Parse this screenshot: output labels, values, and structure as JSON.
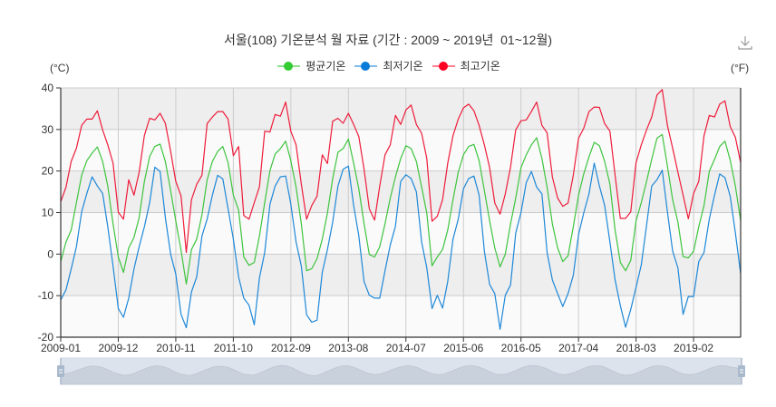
{
  "title": "서울(108) 기온분석 월 자료 (기간 : 2009 ~ 2019년  01~12월)",
  "toolbox": {
    "download_icon": "download-icon"
  },
  "axes": {
    "left_unit": "(°C)",
    "right_unit": "(°F)"
  },
  "legend": [
    {
      "label": "평균기온",
      "color": "#33cc33",
      "line_color": "#8fdf8f"
    },
    {
      "label": "최저기온",
      "color": "#0a7bd9",
      "line_color": "#80bbe9"
    },
    {
      "label": "최고기온",
      "color": "#ff0022",
      "line_color": "#ff7f8f"
    }
  ],
  "data_zoom": {
    "start_percent": 0,
    "end_percent": 100,
    "background": "#dde3ec",
    "shadow": "#c9d1dc",
    "handle": "#a9b9cc"
  },
  "chart_data": {
    "type": "line",
    "title": "서울(108) 기온분석 월 자료 (기간 : 2009 ~ 2019년  01~12월)",
    "xlabel": "",
    "ylabel": "(°C)",
    "ylabel_right": "(°F)",
    "ylim": [
      -20,
      40
    ],
    "y_ticks": [
      40,
      30,
      20,
      10,
      0,
      -10,
      -20
    ],
    "x_tick_labels": [
      "2009-01",
      "2009-12",
      "2010-11",
      "2011-10",
      "2012-09",
      "2013-08",
      "2014-07",
      "2015-06",
      "2016-05",
      "2017-04",
      "2018-03",
      "2019-02"
    ],
    "grid": true,
    "legend_position": "top",
    "x": [
      "2009-01",
      "2009-02",
      "2009-03",
      "2009-04",
      "2009-05",
      "2009-06",
      "2009-07",
      "2009-08",
      "2009-09",
      "2009-10",
      "2009-11",
      "2009-12",
      "2010-01",
      "2010-02",
      "2010-03",
      "2010-04",
      "2010-05",
      "2010-06",
      "2010-07",
      "2010-08",
      "2010-09",
      "2010-10",
      "2010-11",
      "2010-12",
      "2011-01",
      "2011-02",
      "2011-03",
      "2011-04",
      "2011-05",
      "2011-06",
      "2011-07",
      "2011-08",
      "2011-09",
      "2011-10",
      "2011-11",
      "2011-12",
      "2012-01",
      "2012-02",
      "2012-03",
      "2012-04",
      "2012-05",
      "2012-06",
      "2012-07",
      "2012-08",
      "2012-09",
      "2012-10",
      "2012-11",
      "2012-12",
      "2013-01",
      "2013-02",
      "2013-03",
      "2013-04",
      "2013-05",
      "2013-06",
      "2013-07",
      "2013-08",
      "2013-09",
      "2013-10",
      "2013-11",
      "2013-12",
      "2014-01",
      "2014-02",
      "2014-03",
      "2014-04",
      "2014-05",
      "2014-06",
      "2014-07",
      "2014-08",
      "2014-09",
      "2014-10",
      "2014-11",
      "2014-12",
      "2015-01",
      "2015-02",
      "2015-03",
      "2015-04",
      "2015-05",
      "2015-06",
      "2015-07",
      "2015-08",
      "2015-09",
      "2015-10",
      "2015-11",
      "2015-12",
      "2016-01",
      "2016-02",
      "2016-03",
      "2016-04",
      "2016-05",
      "2016-06",
      "2016-07",
      "2016-08",
      "2016-09",
      "2016-10",
      "2016-11",
      "2016-12",
      "2017-01",
      "2017-02",
      "2017-03",
      "2017-04",
      "2017-05",
      "2017-06",
      "2017-07",
      "2017-08",
      "2017-09",
      "2017-10",
      "2017-11",
      "2017-12",
      "2018-01",
      "2018-02",
      "2018-03",
      "2018-04",
      "2018-05",
      "2018-06",
      "2018-07",
      "2018-08",
      "2018-09",
      "2018-10",
      "2018-11",
      "2018-12",
      "2019-01",
      "2019-02",
      "2019-03",
      "2019-04",
      "2019-05",
      "2019-06",
      "2019-07",
      "2019-08",
      "2019-09",
      "2019-10",
      "2019-11"
    ],
    "series": [
      {
        "name": "평균기온",
        "key": "avg",
        "color": "#3ec43e",
        "values": [
          -1.8,
          2.9,
          5.8,
          12.4,
          19.0,
          22.5,
          24.3,
          25.8,
          22.3,
          16.4,
          7.3,
          -0.7,
          -4.4,
          1.5,
          4.0,
          8.8,
          17.5,
          23.5,
          25.9,
          26.5,
          22.3,
          15.3,
          8.0,
          0.9,
          -7.2,
          1.1,
          3.6,
          9.5,
          17.9,
          22.3,
          24.7,
          25.9,
          22.0,
          14.2,
          10.6,
          -0.7,
          -2.7,
          -2.0,
          4.4,
          12.4,
          20.1,
          24.1,
          25.4,
          27.2,
          22.5,
          16.1,
          7.3,
          -4.0,
          -3.5,
          -1.1,
          3.6,
          9.9,
          18.2,
          24.5,
          25.4,
          27.7,
          21.9,
          15.7,
          7.3,
          -0.1,
          -0.7,
          1.8,
          7.3,
          13.5,
          18.6,
          23.0,
          26.1,
          25.4,
          22.3,
          16.1,
          9.9,
          -2.8,
          -0.7,
          1.1,
          5.8,
          13.1,
          19.7,
          23.9,
          25.9,
          26.4,
          22.5,
          15.3,
          8.0,
          1.5,
          -3.1,
          0.0,
          7.3,
          13.5,
          20.8,
          23.9,
          26.3,
          28.0,
          23.0,
          16.1,
          7.3,
          1.5,
          -1.8,
          -0.4,
          6.6,
          14.2,
          19.3,
          23.4,
          26.9,
          26.1,
          22.3,
          16.8,
          5.8,
          -2.0,
          -4.0,
          -1.5,
          8.0,
          12.4,
          17.5,
          22.8,
          27.9,
          28.8,
          21.2,
          13.1,
          7.7,
          -0.6,
          -0.9,
          0.7,
          6.6,
          11.7,
          19.9,
          22.8,
          25.9,
          27.2,
          22.6,
          16.4,
          8.0
        ]
      },
      {
        "name": "최저기온",
        "key": "min",
        "color": "#1e88d8",
        "values": [
          -11.0,
          -8.6,
          -3.6,
          1.8,
          10.2,
          14.6,
          18.6,
          16.4,
          14.6,
          6.6,
          -2.9,
          -13.1,
          -15.2,
          -10.6,
          -3.6,
          1.8,
          6.6,
          12.4,
          20.9,
          19.9,
          8.8,
          0.0,
          -4.8,
          -14.5,
          -17.7,
          -9.1,
          -5.5,
          4.4,
          8.4,
          14.2,
          19.0,
          18.1,
          10.9,
          3.6,
          -5.5,
          -10.6,
          -12.3,
          -17.0,
          -5.7,
          0.4,
          12.0,
          16.4,
          18.6,
          18.8,
          12.0,
          2.9,
          -2.9,
          -14.6,
          -16.4,
          -15.9,
          -4.4,
          1.1,
          7.7,
          16.4,
          20.4,
          21.2,
          11.7,
          4.4,
          -6.6,
          -9.9,
          -10.6,
          -10.6,
          -4.0,
          2.2,
          6.7,
          17.5,
          19.1,
          18.2,
          15.0,
          2.9,
          -3.3,
          -13.1,
          -9.9,
          -13.0,
          -6.6,
          3.6,
          8.4,
          15.7,
          18.2,
          18.8,
          14.2,
          0.7,
          -7.3,
          -9.5,
          -18.1,
          -9.9,
          -7.4,
          5.1,
          10.0,
          17.2,
          19.9,
          16.1,
          14.5,
          0.4,
          -6.2,
          -9.5,
          -12.6,
          -9.5,
          -5.1,
          4.7,
          9.9,
          14.5,
          21.9,
          16.4,
          11.7,
          2.9,
          -6.2,
          -12.4,
          -17.6,
          -13.3,
          -8.0,
          -2.6,
          6.9,
          16.4,
          17.9,
          20.2,
          10.2,
          0.7,
          -3.3,
          -14.5,
          -10.2,
          -10.2,
          -1.8,
          0.4,
          8.4,
          14.2,
          19.3,
          18.4,
          13.9,
          5.1,
          -4.7
        ]
      },
      {
        "name": "최고기온",
        "key": "max",
        "color": "#ee1c3a",
        "values": [
          12.6,
          16.1,
          22.3,
          25.5,
          31.0,
          32.5,
          32.5,
          34.5,
          29.9,
          26.3,
          21.9,
          10.1,
          8.4,
          17.9,
          14.2,
          19.7,
          28.6,
          32.7,
          32.3,
          33.9,
          31.5,
          24.8,
          17.5,
          14.0,
          0.4,
          13.1,
          16.8,
          19.0,
          31.4,
          33.0,
          34.3,
          34.3,
          32.5,
          23.7,
          25.9,
          9.3,
          8.4,
          12.4,
          16.2,
          29.6,
          29.4,
          33.6,
          33.2,
          36.6,
          29.6,
          26.3,
          16.8,
          8.4,
          11.7,
          13.9,
          23.9,
          21.8,
          32.0,
          32.7,
          31.5,
          33.9,
          31.2,
          28.3,
          20.4,
          10.9,
          8.2,
          16.4,
          23.9,
          26.3,
          33.4,
          31.2,
          34.7,
          35.9,
          31.2,
          29.1,
          23.0,
          7.9,
          9.1,
          13.1,
          21.9,
          28.5,
          32.5,
          35.2,
          36.1,
          34.5,
          31.0,
          26.3,
          20.8,
          12.3,
          9.6,
          14.5,
          21.0,
          29.9,
          32.1,
          32.3,
          34.3,
          36.6,
          31.0,
          29.2,
          18.6,
          13.5,
          11.5,
          12.3,
          19.0,
          27.9,
          30.3,
          34.3,
          35.4,
          35.3,
          31.4,
          29.6,
          19.0,
          8.6,
          8.6,
          10.2,
          22.0,
          26.3,
          29.9,
          33.0,
          38.3,
          39.6,
          31.0,
          25.5,
          19.7,
          14.2,
          8.5,
          14.6,
          17.5,
          28.5,
          33.4,
          33.0,
          36.1,
          36.9,
          30.7,
          28.1,
          22.0
        ]
      }
    ]
  }
}
